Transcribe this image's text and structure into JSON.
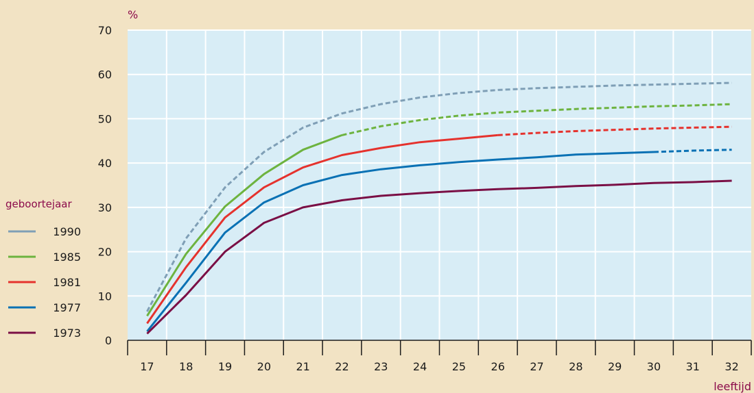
{
  "chart_data": {
    "type": "line",
    "ylabel": "%",
    "xlabel": "leeftijd",
    "legend_title": "geboortejaar",
    "legend_position": "left",
    "grid": true,
    "ylim": [
      0,
      70
    ],
    "yticks": [
      0,
      10,
      20,
      30,
      40,
      50,
      60,
      70
    ],
    "xlim": [
      17,
      32
    ],
    "xticks": [
      17,
      18,
      19,
      20,
      21,
      22,
      23,
      24,
      25,
      26,
      27,
      28,
      29,
      30,
      31,
      32
    ],
    "x": [
      17,
      18,
      19,
      20,
      21,
      22,
      23,
      24,
      25,
      26,
      27,
      28,
      29,
      30,
      31,
      32
    ],
    "series": [
      {
        "name": "1990",
        "color": "#7f9fb6",
        "values": [
          6.5,
          23.0,
          34.5,
          42.5,
          48.0,
          51.2,
          53.3,
          54.8,
          55.8,
          56.5,
          56.9,
          57.2,
          57.5,
          57.7,
          57.9,
          58.1
        ],
        "dashed_from_index": 0
      },
      {
        "name": "1985",
        "color": "#6db33f",
        "values": [
          5.5,
          19.5,
          30.2,
          37.5,
          43.0,
          46.3,
          48.3,
          49.7,
          50.7,
          51.4,
          51.8,
          52.2,
          52.5,
          52.8,
          53.0,
          53.3
        ],
        "dashed_from_index": 5
      },
      {
        "name": "1981",
        "color": "#e5322d",
        "values": [
          3.8,
          16.5,
          27.7,
          34.5,
          39.0,
          41.8,
          43.4,
          44.7,
          45.5,
          46.3,
          46.8,
          47.2,
          47.5,
          47.8,
          48.0,
          48.2
        ],
        "dashed_from_index": 9
      },
      {
        "name": "1977",
        "color": "#0a71b4",
        "values": [
          2.0,
          13.0,
          24.3,
          31.1,
          35.0,
          37.3,
          38.6,
          39.5,
          40.2,
          40.8,
          41.3,
          41.9,
          42.2,
          42.5,
          42.8,
          43.0
        ],
        "dashed_from_index": 13
      },
      {
        "name": "1973",
        "color": "#7a0f45",
        "values": [
          1.5,
          10.2,
          20.0,
          26.5,
          30.0,
          31.6,
          32.6,
          33.2,
          33.7,
          34.1,
          34.4,
          34.8,
          35.1,
          35.5,
          35.7,
          36.0
        ],
        "dashed_from_index": null
      }
    ]
  }
}
